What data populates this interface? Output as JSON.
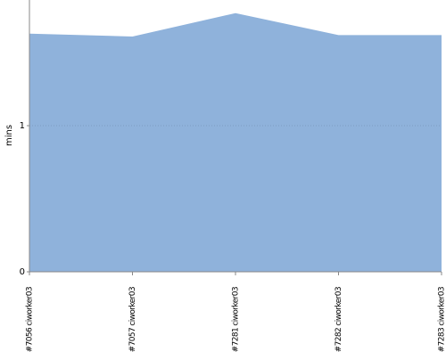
{
  "chart_data": {
    "type": "area",
    "y_label": "mins",
    "categories": [
      "#7056 ciworker03",
      "#7057 ciworker03",
      "#7281 ciworker03",
      "#7282 ciworker03",
      "#7283 ciworker03"
    ],
    "values": [
      1.63,
      1.61,
      1.77,
      1.62,
      1.62
    ],
    "color": "#8fb2db",
    "ylim": [
      0,
      1.86
    ],
    "yticks": [
      0,
      1
    ],
    "grid": true
  }
}
